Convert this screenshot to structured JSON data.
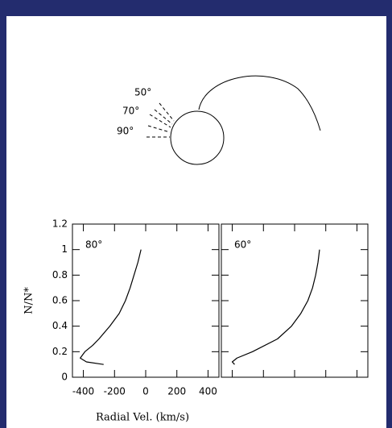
{
  "diagram": {
    "angle_labels": [
      "50°",
      "70°",
      "90°"
    ]
  },
  "chart_data": [
    {
      "type": "line",
      "annotation": "80°",
      "xlabel": "Radial Vel. (km/s)",
      "ylabel": "N/N*",
      "x": [
        -30,
        -50,
        -75,
        -100,
        -130,
        -170,
        -230,
        -300,
        -340,
        -390,
        -420,
        -380,
        -270
      ],
      "values": [
        1.0,
        0.9,
        0.8,
        0.7,
        0.6,
        0.5,
        0.4,
        0.3,
        0.25,
        0.2,
        0.15,
        0.12,
        0.1
      ],
      "color": "#000000",
      "xlim": [
        -470,
        470
      ],
      "ylim": [
        0,
        1.2
      ],
      "xticks": [
        -400,
        -200,
        0,
        200,
        400
      ],
      "yticks": [
        0,
        0.2,
        0.4,
        0.6,
        0.8,
        1,
        1.2
      ],
      "tick_labels": true
    },
    {
      "type": "line",
      "annotation": "60°",
      "x": [
        160,
        150,
        135,
        115,
        85,
        40,
        -20,
        -110,
        -270,
        -370,
        -400,
        -385
      ],
      "values": [
        1.0,
        0.9,
        0.8,
        0.7,
        0.6,
        0.5,
        0.4,
        0.3,
        0.2,
        0.15,
        0.12,
        0.1
      ],
      "color": "#000000",
      "xlim": [
        -470,
        470
      ],
      "ylim": [
        0,
        1.2
      ],
      "xticks": [
        -400,
        -200,
        0,
        200,
        400
      ],
      "yticks": [
        0,
        0.2,
        0.4,
        0.6,
        0.8,
        1,
        1.2
      ],
      "tick_labels": false
    }
  ]
}
